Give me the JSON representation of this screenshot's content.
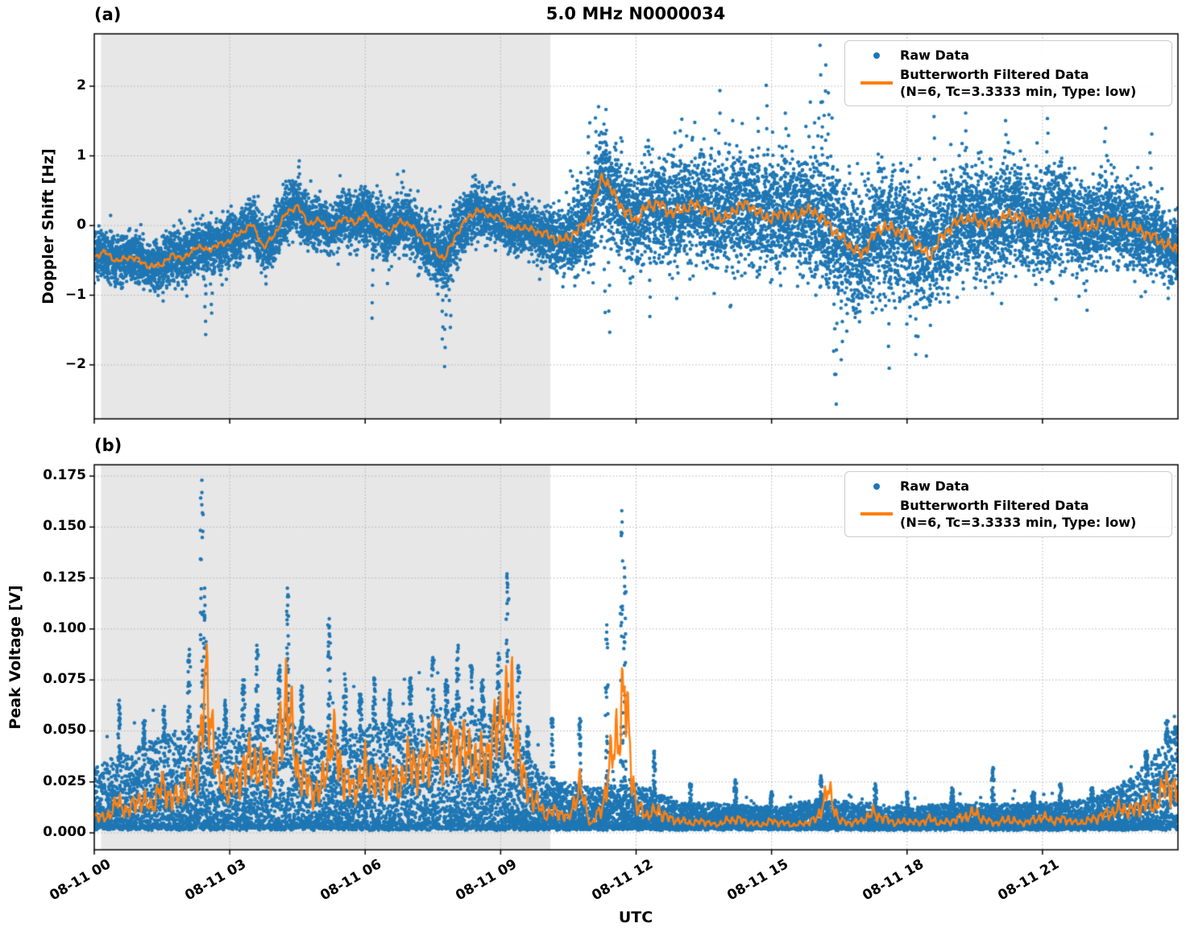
{
  "figure": {
    "title": "5.0 MHz N0000034",
    "xlabel": "UTC",
    "panel_a_label": "(a)",
    "panel_b_label": "(b)",
    "ylabel_a": "Doppler Shift [Hz]",
    "ylabel_b": "Peak Voltage [V]"
  },
  "legend": {
    "raw_label": "Raw Data",
    "filtered_label_line1": "Butterworth Filtered Data",
    "filtered_label_line2": "(N=6, Tc=3.3333 min, Type: low)",
    "position": "upper right"
  },
  "colors": {
    "raw": "#1f77b4",
    "filtered": "#ff7f0e",
    "shade": "#e7e7e7",
    "grid": "#b0b0b0",
    "axes": "#000000"
  },
  "chart_data": [
    {
      "type": "scatter",
      "panel": "a",
      "title": "5.0 MHz N0000034",
      "ylabel": "Doppler Shift [Hz]",
      "ylim": [
        -2.77,
        2.75
      ],
      "yticks": [
        -2,
        -1,
        0,
        1,
        2
      ],
      "ytick_labels": [
        "−2",
        "−1",
        "0",
        "1",
        "2"
      ],
      "x_hours_range": [
        0,
        24
      ],
      "xtick_hours": [
        0,
        3,
        6,
        9,
        12,
        15,
        18,
        21
      ],
      "xtick_labels": [
        "08-11 00",
        "08-11 03",
        "08-11 06",
        "08-11 09",
        "08-11 12",
        "08-11 15",
        "08-11 18",
        "08-11 21"
      ],
      "shaded_hours": [
        0.15,
        10.1
      ],
      "grid": true,
      "legend_position": "upper right",
      "filtered_t_step_hours": 0.25,
      "filtered_values_hz": [
        -0.45,
        -0.38,
        -0.52,
        -0.45,
        -0.5,
        -0.6,
        -0.55,
        -0.42,
        -0.48,
        -0.3,
        -0.35,
        -0.28,
        -0.22,
        -0.1,
        0.02,
        -0.32,
        -0.12,
        0.18,
        0.28,
        0.02,
        0.08,
        -0.08,
        0.12,
        0.03,
        0.15,
        0.02,
        -0.12,
        0.05,
        0.02,
        -0.18,
        -0.35,
        -0.48,
        -0.15,
        0.1,
        0.22,
        0.15,
        0.1,
        -0.05,
        -0.02,
        -0.08,
        -0.12,
        -0.22,
        -0.18,
        -0.05,
        0.15,
        0.72,
        0.45,
        0.2,
        0.08,
        0.28,
        0.32,
        0.18,
        0.22,
        0.3,
        0.25,
        0.12,
        0.1,
        0.28,
        0.3,
        0.15,
        0.1,
        0.18,
        0.12,
        0.22,
        0.18,
        0.02,
        -0.15,
        -0.3,
        -0.42,
        -0.15,
        0.0,
        -0.08,
        -0.12,
        -0.3,
        -0.45,
        -0.18,
        0.0,
        0.1,
        0.08,
        0.02,
        0.06,
        0.15,
        0.12,
        0.05,
        0.0,
        0.12,
        0.18,
        0.05,
        -0.05,
        0.05,
        0.1,
        0.02,
        -0.02,
        -0.1,
        -0.18,
        -0.28,
        -0.35
      ],
      "raw_band_halfwidth_t_step_hours": 1.0,
      "raw_band_halfwidth_hz": [
        0.32,
        0.35,
        0.38,
        0.35,
        0.38,
        0.35,
        0.38,
        0.42,
        0.45,
        0.35,
        0.4,
        0.65,
        0.7,
        0.72,
        0.75,
        0.78,
        0.95,
        0.85,
        0.85,
        0.8,
        0.75,
        0.7,
        0.65,
        0.55,
        0.45
      ],
      "raw_outliers_t_y": [
        [
          2.45,
          -1.55
        ],
        [
          2.6,
          -1.28
        ],
        [
          4.55,
          0.95
        ],
        [
          6.15,
          -1.32
        ],
        [
          7.7,
          -1.62
        ],
        [
          7.78,
          -2.02
        ],
        [
          7.88,
          -1.45
        ],
        [
          10.95,
          1.48
        ],
        [
          11.1,
          1.52
        ],
        [
          11.3,
          -1.25
        ],
        [
          11.4,
          -1.55
        ],
        [
          12.3,
          -1.3
        ],
        [
          13.0,
          1.55
        ],
        [
          13.85,
          1.92
        ],
        [
          14.7,
          1.55
        ],
        [
          14.9,
          2.0
        ],
        [
          15.3,
          1.62
        ],
        [
          16.1,
          2.58
        ],
        [
          16.18,
          2.3
        ],
        [
          16.25,
          1.9
        ],
        [
          16.4,
          -2.12
        ],
        [
          16.45,
          -2.55
        ],
        [
          16.55,
          -1.92
        ],
        [
          17.6,
          -2.05
        ],
        [
          18.2,
          -1.85
        ],
        [
          18.6,
          1.55
        ],
        [
          19.3,
          1.62
        ],
        [
          20.2,
          1.5
        ],
        [
          21.1,
          1.55
        ],
        [
          22.4,
          1.4
        ],
        [
          23.4,
          1.3
        ]
      ]
    },
    {
      "type": "scatter",
      "panel": "b",
      "ylabel": "Peak Voltage [V]",
      "ylim": [
        -0.0083,
        0.1806
      ],
      "yticks": [
        0.0,
        0.025,
        0.05,
        0.075,
        0.1,
        0.125,
        0.15,
        0.175
      ],
      "ytick_labels": [
        "0.000",
        "0.025",
        "0.050",
        "0.075",
        "0.100",
        "0.125",
        "0.150",
        "0.175"
      ],
      "x_hours_range": [
        0,
        24
      ],
      "xtick_hours": [
        0,
        3,
        6,
        9,
        12,
        15,
        18,
        21
      ],
      "xtick_labels": [
        "08-11 00",
        "08-11 03",
        "08-11 06",
        "08-11 09",
        "08-11 12",
        "08-11 15",
        "08-11 18",
        "08-11 21"
      ],
      "shaded_hours": [
        0.15,
        10.1
      ],
      "grid": true,
      "legend_position": "upper right",
      "filtered_t_step_hours": 0.25,
      "filtered_values_v": [
        0.008,
        0.006,
        0.014,
        0.01,
        0.016,
        0.012,
        0.022,
        0.015,
        0.02,
        0.028,
        0.072,
        0.025,
        0.02,
        0.03,
        0.035,
        0.028,
        0.032,
        0.068,
        0.03,
        0.022,
        0.018,
        0.046,
        0.028,
        0.02,
        0.03,
        0.024,
        0.028,
        0.022,
        0.035,
        0.03,
        0.042,
        0.035,
        0.045,
        0.038,
        0.032,
        0.04,
        0.055,
        0.062,
        0.025,
        0.015,
        0.008,
        0.01,
        0.006,
        0.022,
        0.003,
        0.012,
        0.04,
        0.066,
        0.012,
        0.008,
        0.01,
        0.006,
        0.005,
        0.004,
        0.005,
        0.003,
        0.005,
        0.006,
        0.004,
        0.003,
        0.005,
        0.004,
        0.003,
        0.004,
        0.006,
        0.02,
        0.005,
        0.004,
        0.005,
        0.009,
        0.006,
        0.004,
        0.005,
        0.004,
        0.006,
        0.004,
        0.005,
        0.007,
        0.009,
        0.005,
        0.004,
        0.006,
        0.004,
        0.005,
        0.007,
        0.005,
        0.006,
        0.004,
        0.005,
        0.007,
        0.009,
        0.011,
        0.01,
        0.014,
        0.012,
        0.024,
        0.018
      ],
      "raw_band_top_t_step_hours": 1.0,
      "raw_band_top_v": [
        0.03,
        0.04,
        0.05,
        0.048,
        0.055,
        0.048,
        0.05,
        0.055,
        0.06,
        0.055,
        0.025,
        0.02,
        0.022,
        0.012,
        0.012,
        0.01,
        0.014,
        0.012,
        0.01,
        0.012,
        0.012,
        0.012,
        0.014,
        0.025,
        0.05
      ],
      "raw_spikes_t_peak": [
        [
          0.55,
          0.065
        ],
        [
          1.1,
          0.055
        ],
        [
          1.55,
          0.062
        ],
        [
          2.1,
          0.09
        ],
        [
          2.38,
          0.173
        ],
        [
          2.45,
          0.12
        ],
        [
          2.9,
          0.065
        ],
        [
          3.3,
          0.075
        ],
        [
          3.6,
          0.092
        ],
        [
          4.1,
          0.082
        ],
        [
          4.28,
          0.12
        ],
        [
          4.6,
          0.072
        ],
        [
          5.2,
          0.105
        ],
        [
          5.55,
          0.078
        ],
        [
          5.9,
          0.068
        ],
        [
          6.2,
          0.076
        ],
        [
          6.55,
          0.07
        ],
        [
          7.0,
          0.076
        ],
        [
          7.5,
          0.086
        ],
        [
          7.8,
          0.075
        ],
        [
          8.05,
          0.092
        ],
        [
          8.35,
          0.082
        ],
        [
          8.6,
          0.075
        ],
        [
          8.95,
          0.088
        ],
        [
          9.15,
          0.127
        ],
        [
          9.4,
          0.082
        ],
        [
          9.6,
          0.052
        ],
        [
          10.15,
          0.056
        ],
        [
          10.75,
          0.056
        ],
        [
          11.35,
          0.102
        ],
        [
          11.68,
          0.158
        ],
        [
          11.75,
          0.13
        ],
        [
          12.4,
          0.04
        ],
        [
          13.2,
          0.024
        ],
        [
          14.2,
          0.026
        ],
        [
          15.0,
          0.02
        ],
        [
          16.1,
          0.028
        ],
        [
          17.3,
          0.024
        ],
        [
          18.0,
          0.02
        ],
        [
          19.0,
          0.022
        ],
        [
          19.9,
          0.032
        ],
        [
          20.8,
          0.02
        ],
        [
          21.4,
          0.024
        ],
        [
          22.1,
          0.022
        ],
        [
          23.3,
          0.04
        ],
        [
          23.75,
          0.055
        ],
        [
          23.95,
          0.052
        ]
      ]
    }
  ]
}
